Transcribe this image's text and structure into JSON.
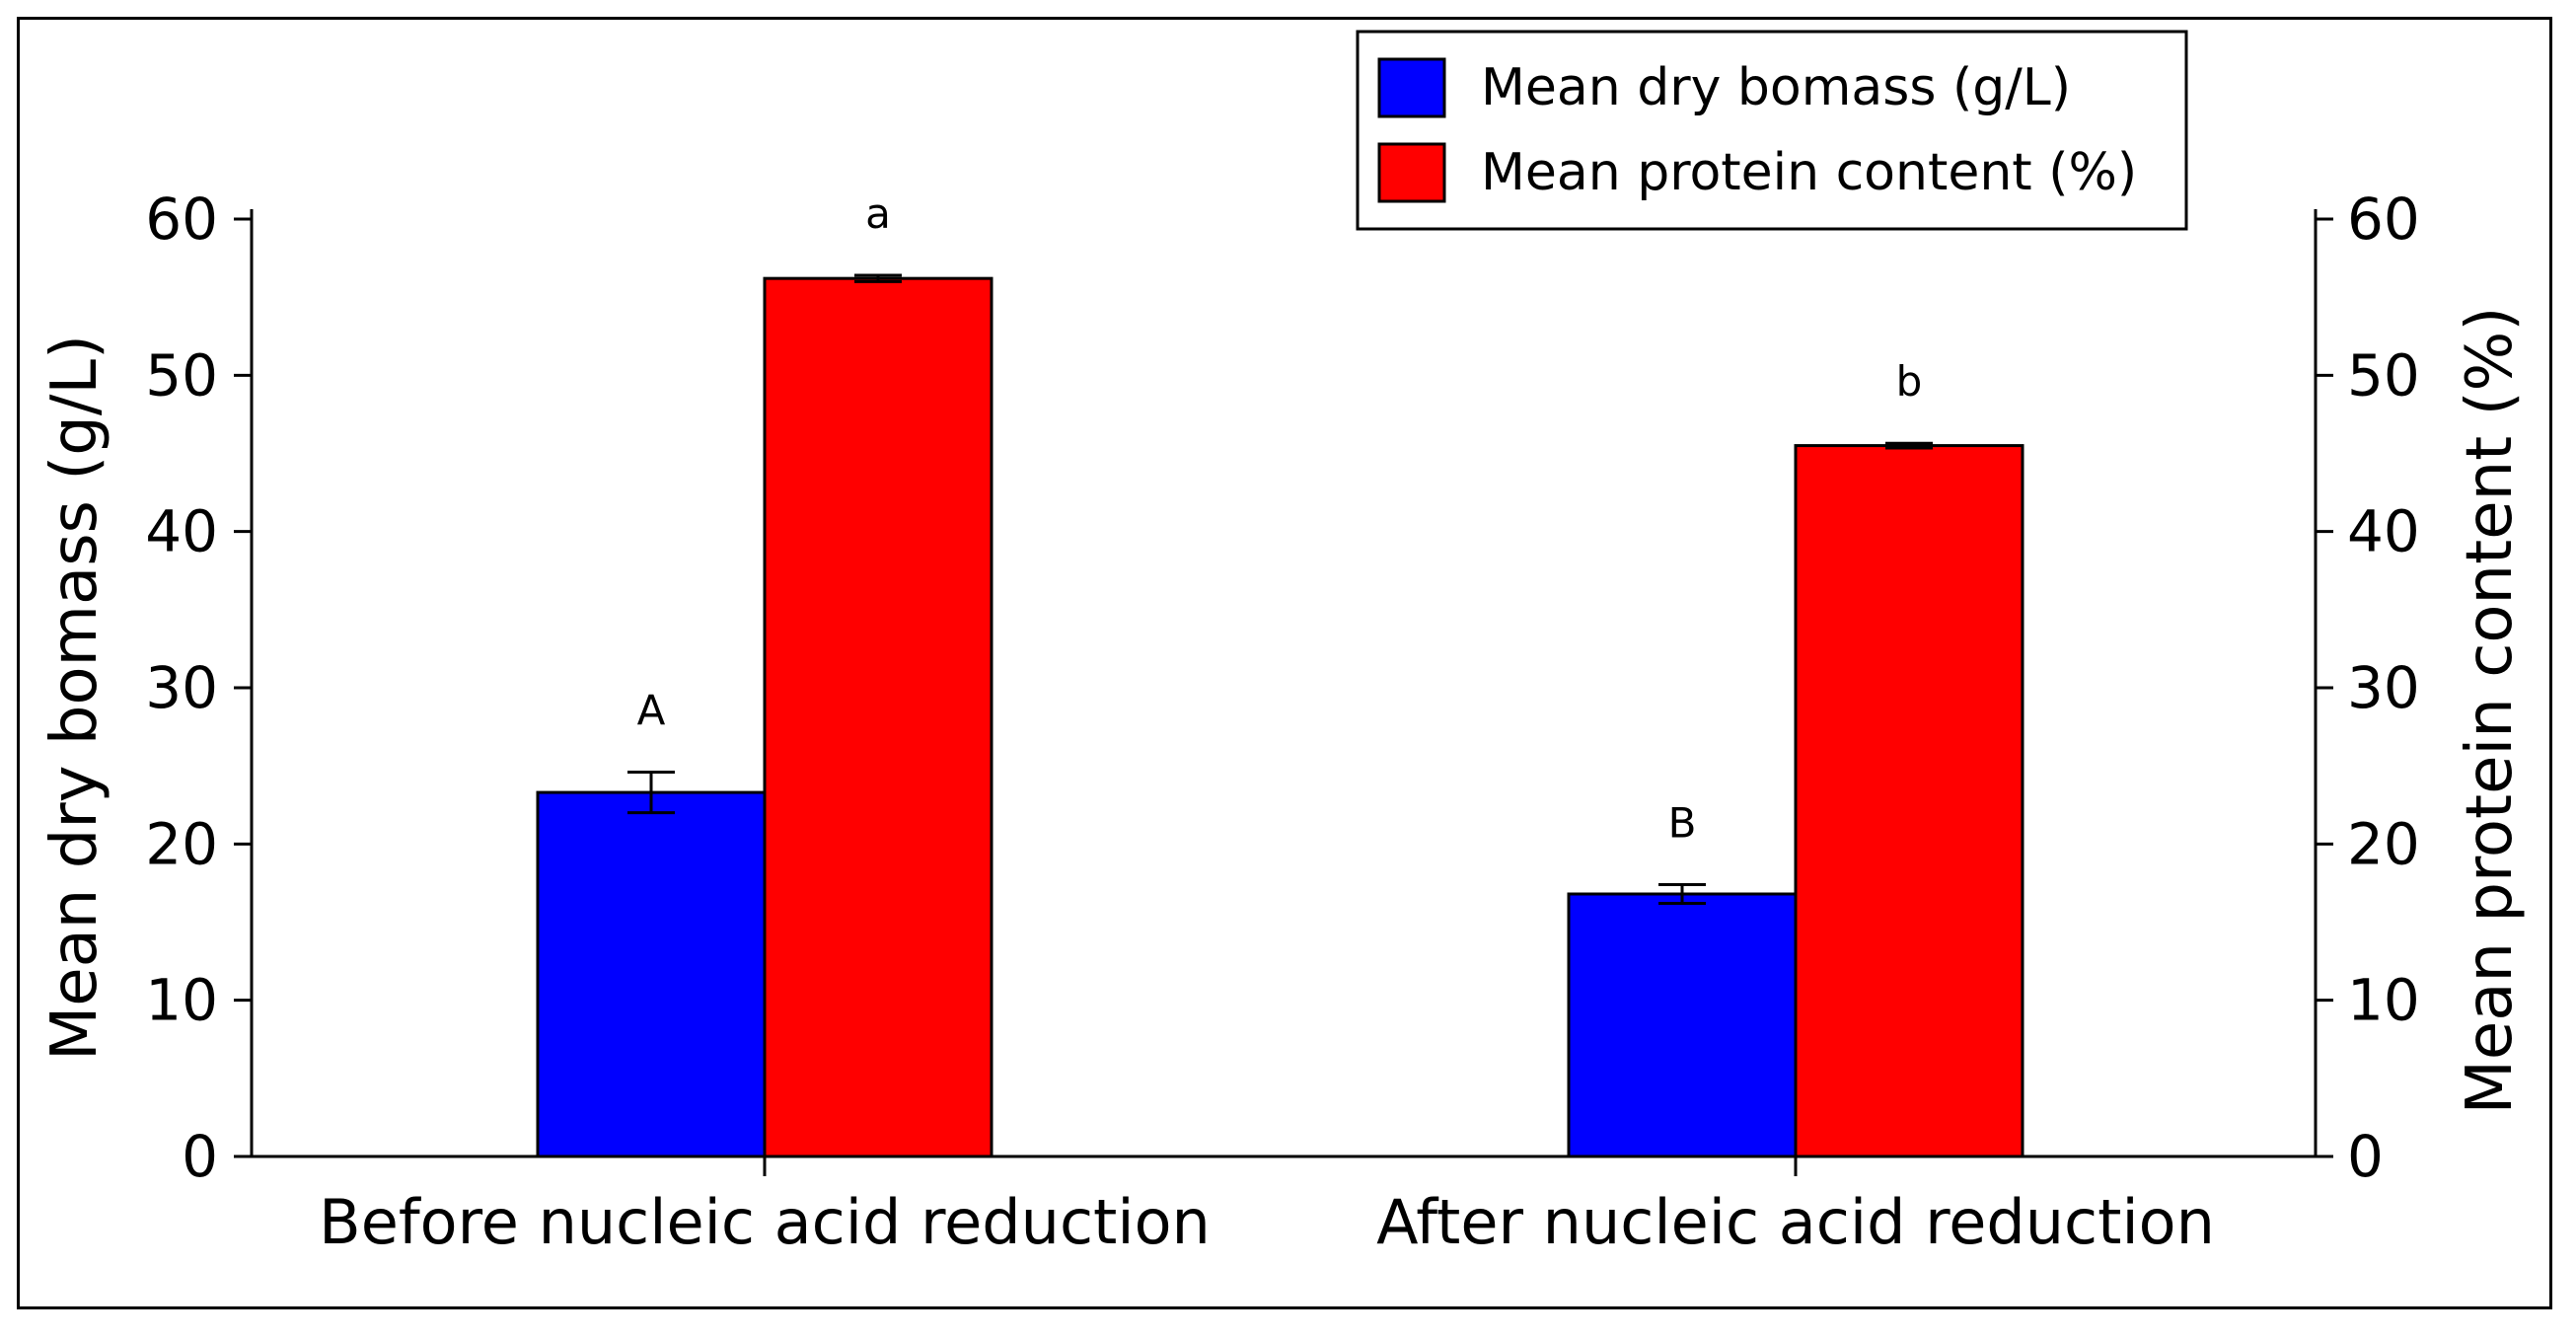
{
  "chart_data": {
    "type": "bar",
    "categories": [
      "Before nucleic acid reduction",
      "After nucleic acid reduction"
    ],
    "series": [
      {
        "name": "Mean dry bomass (g/L)",
        "axis": "left",
        "color": "#0000ff",
        "values": [
          23.3,
          16.8
        ],
        "errors": [
          1.3,
          0.6
        ],
        "significance": [
          "A",
          "B"
        ]
      },
      {
        "name": "Mean protein content (%)",
        "axis": "right",
        "color": "#ff0000",
        "values": [
          56.2,
          45.5
        ],
        "errors": [
          0.2,
          0.15
        ],
        "significance": [
          "a",
          "b"
        ]
      }
    ],
    "ylabel_left": "Mean dry bomass (g/L)",
    "ylabel_right": "Mean protein content (%)",
    "ylim_left": [
      0,
      60
    ],
    "ylim_right": [
      0,
      60
    ],
    "yticks": [
      0,
      10,
      20,
      30,
      40,
      50,
      60
    ],
    "legend_position": "top-right",
    "grid": false
  }
}
